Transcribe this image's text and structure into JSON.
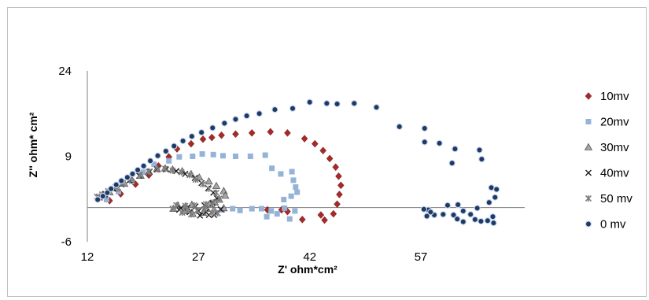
{
  "chart_data": {
    "type": "scatter",
    "title": "",
    "xlabel": "Z' ohm*cm²",
    "ylabel": "Z'' ohm* cm²",
    "xlim": [
      12,
      71
    ],
    "ylim": [
      -6,
      24
    ],
    "x_ticks": [
      "12",
      "27",
      "42",
      "57"
    ],
    "y_ticks": [
      "24",
      "9",
      "-6"
    ],
    "legend_position": "right",
    "grid": false,
    "series": [
      {
        "name": "10mv",
        "marker": "diamond",
        "color": "#a52a2a",
        "points": [
          [
            15.0,
            1.2
          ],
          [
            16.5,
            2.4
          ],
          [
            18.5,
            4.1
          ],
          [
            20.3,
            5.7
          ],
          [
            21.6,
            7.3
          ],
          [
            23.0,
            8.9
          ],
          [
            24.1,
            10.3
          ],
          [
            26.0,
            11.2
          ],
          [
            27.6,
            12.0
          ],
          [
            28.8,
            12.3
          ],
          [
            30.1,
            12.7
          ],
          [
            32.0,
            12.9
          ],
          [
            34.2,
            13.1
          ],
          [
            36.7,
            13.3
          ],
          [
            39.0,
            13.1
          ],
          [
            41.3,
            12.1
          ],
          [
            42.7,
            11.2
          ],
          [
            43.8,
            10.0
          ],
          [
            44.7,
            8.6
          ],
          [
            45.5,
            7.1
          ],
          [
            45.9,
            5.5
          ],
          [
            46.2,
            3.9
          ],
          [
            46.0,
            2.3
          ],
          [
            45.7,
            0.6
          ],
          [
            45.2,
            -1.1
          ],
          [
            44.0,
            -2.2
          ],
          [
            43.5,
            -1.3
          ],
          [
            41.0,
            -2.1
          ],
          [
            39.0,
            -0.7
          ],
          [
            38.2,
            -0.4
          ],
          [
            36.3,
            -0.4
          ]
        ]
      },
      {
        "name": "20mv",
        "marker": "square",
        "color": "#95b3d7",
        "points": [
          [
            14.6,
            1.4
          ],
          [
            16.2,
            2.8
          ],
          [
            18.0,
            4.6
          ],
          [
            19.5,
            6.2
          ],
          [
            21.0,
            7.6
          ],
          [
            23.0,
            8.2
          ],
          [
            24.4,
            8.9
          ],
          [
            26.2,
            9.0
          ],
          [
            27.5,
            9.4
          ],
          [
            29.0,
            9.3
          ],
          [
            30.3,
            9.1
          ],
          [
            32.0,
            9.0
          ],
          [
            34.0,
            9.0
          ],
          [
            36.0,
            9.2
          ],
          [
            36.9,
            6.9
          ],
          [
            38.1,
            5.9
          ],
          [
            39.6,
            6.3
          ],
          [
            39.8,
            4.8
          ],
          [
            40.1,
            3.6
          ],
          [
            40.3,
            2.7
          ],
          [
            39.5,
            2.0
          ],
          [
            38.5,
            1.4
          ],
          [
            35.5,
            -0.2
          ],
          [
            34.2,
            -0.2
          ],
          [
            32.6,
            -0.5
          ],
          [
            31.6,
            -0.2
          ],
          [
            30.2,
            -0.4
          ],
          [
            36.8,
            -0.6
          ],
          [
            37.6,
            -1.1
          ],
          [
            38.6,
            -0.1
          ],
          [
            40.0,
            -0.6
          ],
          [
            39.3,
            -2.0
          ],
          [
            36.2,
            -1.6
          ]
        ]
      },
      {
        "name": "30mv",
        "marker": "triangle",
        "color": "#8c8c8c",
        "points": [
          [
            13.6,
            1.8
          ],
          [
            14.2,
            2.2
          ],
          [
            15.0,
            2.7
          ],
          [
            16.0,
            3.4
          ],
          [
            17.0,
            4.2
          ],
          [
            18.0,
            4.9
          ],
          [
            19.2,
            5.6
          ],
          [
            20.3,
            6.3
          ],
          [
            21.4,
            6.8
          ],
          [
            22.5,
            6.9
          ],
          [
            23.5,
            6.7
          ],
          [
            24.8,
            6.4
          ],
          [
            26.0,
            5.9
          ],
          [
            27.1,
            5.3
          ],
          [
            28.4,
            4.6
          ],
          [
            29.4,
            3.8
          ],
          [
            30.4,
            2.9
          ],
          [
            30.6,
            2.1
          ],
          [
            29.8,
            1.4
          ],
          [
            29.2,
            0.9
          ],
          [
            28.5,
            0.6
          ],
          [
            26.1,
            0.5
          ],
          [
            25.3,
            0.2
          ],
          [
            24.2,
            0.4
          ],
          [
            28.1,
            -0.2
          ],
          [
            29.1,
            -0.4
          ],
          [
            30.4,
            -0.1
          ],
          [
            27.6,
            -0.9
          ],
          [
            26.2,
            -1.1
          ],
          [
            25.0,
            -0.6
          ],
          [
            23.6,
            -0.2
          ]
        ]
      },
      {
        "name": "40mv",
        "marker": "x",
        "color": "#1a1a1a",
        "points": [
          [
            13.5,
            1.8
          ],
          [
            14.4,
            2.4
          ],
          [
            15.5,
            3.3
          ],
          [
            16.6,
            4.1
          ],
          [
            17.7,
            4.8
          ],
          [
            19.0,
            5.6
          ],
          [
            20.4,
            6.3
          ],
          [
            21.4,
            6.7
          ],
          [
            22.6,
            6.7
          ],
          [
            24.0,
            6.4
          ],
          [
            25.2,
            5.9
          ],
          [
            26.5,
            5.2
          ],
          [
            27.4,
            4.3
          ],
          [
            28.3,
            3.4
          ],
          [
            29.0,
            2.6
          ],
          [
            29.5,
            1.6
          ],
          [
            28.9,
            0.8
          ],
          [
            27.8,
            0.4
          ],
          [
            26.6,
            0.2
          ],
          [
            25.5,
            0.0
          ],
          [
            24.6,
            -0.1
          ],
          [
            27.0,
            -0.6
          ],
          [
            28.0,
            -0.8
          ],
          [
            29.1,
            -1.3
          ],
          [
            30.0,
            -0.3
          ],
          [
            24.4,
            -0.4
          ],
          [
            25.8,
            -0.8
          ],
          [
            27.2,
            -1.4
          ],
          [
            28.4,
            -1.3
          ]
        ]
      },
      {
        "name": "50 mv",
        "marker": "asterisk",
        "color": "#7f7f7f",
        "points": [
          [
            13.3,
            1.9
          ],
          [
            14.0,
            2.3
          ],
          [
            14.8,
            2.9
          ],
          [
            15.8,
            3.6
          ],
          [
            16.8,
            4.3
          ],
          [
            17.9,
            5.1
          ],
          [
            19.1,
            5.7
          ],
          [
            20.3,
            6.3
          ],
          [
            21.5,
            6.7
          ],
          [
            22.5,
            6.8
          ],
          [
            23.5,
            6.5
          ],
          [
            24.7,
            6.2
          ],
          [
            25.8,
            5.7
          ],
          [
            26.6,
            4.9
          ],
          [
            27.6,
            4.1
          ],
          [
            28.4,
            3.3
          ],
          [
            29.4,
            2.6
          ],
          [
            29.8,
            1.6
          ],
          [
            29.0,
            0.9
          ],
          [
            28.0,
            0.6
          ],
          [
            26.4,
            0.4
          ],
          [
            25.2,
            0.3
          ],
          [
            24.0,
            0.4
          ],
          [
            23.5,
            -0.2
          ],
          [
            25.5,
            -0.4
          ],
          [
            26.8,
            -0.5
          ],
          [
            27.8,
            -0.3
          ],
          [
            28.8,
            -0.9
          ],
          [
            29.6,
            -1.0
          ],
          [
            24.8,
            -0.9
          ],
          [
            26.0,
            -1.2
          ]
        ]
      },
      {
        "name": "0 mv",
        "marker": "circle",
        "color": "#1f3864",
        "points": [
          [
            13.4,
            1.4
          ],
          [
            14.1,
            2.0
          ],
          [
            14.7,
            2.6
          ],
          [
            15.2,
            3.3
          ],
          [
            15.9,
            4.0
          ],
          [
            16.6,
            4.7
          ],
          [
            17.4,
            5.3
          ],
          [
            18.1,
            5.9
          ],
          [
            18.8,
            6.6
          ],
          [
            19.6,
            7.3
          ],
          [
            20.5,
            8.2
          ],
          [
            21.5,
            9.1
          ],
          [
            22.6,
            9.9
          ],
          [
            23.7,
            10.8
          ],
          [
            24.9,
            11.7
          ],
          [
            26.1,
            12.5
          ],
          [
            27.4,
            13.2
          ],
          [
            28.9,
            14.0
          ],
          [
            30.5,
            14.8
          ],
          [
            32.0,
            15.5
          ],
          [
            33.5,
            16.1
          ],
          [
            35.2,
            16.5
          ],
          [
            37.3,
            17.2
          ],
          [
            39.7,
            17.4
          ],
          [
            42.0,
            18.5
          ],
          [
            44.3,
            18.3
          ],
          [
            45.7,
            18.2
          ],
          [
            48.0,
            18.3
          ],
          [
            51.0,
            17.6
          ],
          [
            54.1,
            14.2
          ],
          [
            57.5,
            13.9
          ],
          [
            57.5,
            11.5
          ],
          [
            59.5,
            11.3
          ],
          [
            61.6,
            10.3
          ],
          [
            64.9,
            10.1
          ],
          [
            65.2,
            8.5
          ],
          [
            61.2,
            7.8
          ],
          [
            66.5,
            3.5
          ],
          [
            67.2,
            3.2
          ],
          [
            67.0,
            1.8
          ],
          [
            66.2,
            0.9
          ],
          [
            64.6,
            -0.1
          ],
          [
            62.7,
            -0.6
          ],
          [
            62.0,
            0.5
          ],
          [
            60.6,
            0.4
          ],
          [
            61.4,
            -1.3
          ],
          [
            61.9,
            -2.0
          ],
          [
            62.7,
            -2.5
          ],
          [
            63.7,
            -1.2
          ],
          [
            64.3,
            -2.1
          ],
          [
            65.1,
            -2.4
          ],
          [
            66.0,
            -2.3
          ],
          [
            66.7,
            -1.6
          ],
          [
            66.8,
            -2.7
          ],
          [
            60.0,
            -1.2
          ],
          [
            58.8,
            -1.3
          ],
          [
            58.0,
            -0.4
          ],
          [
            58.3,
            -0.8
          ],
          [
            57.8,
            -1.5
          ],
          [
            57.4,
            -0.3
          ]
        ]
      }
    ]
  }
}
